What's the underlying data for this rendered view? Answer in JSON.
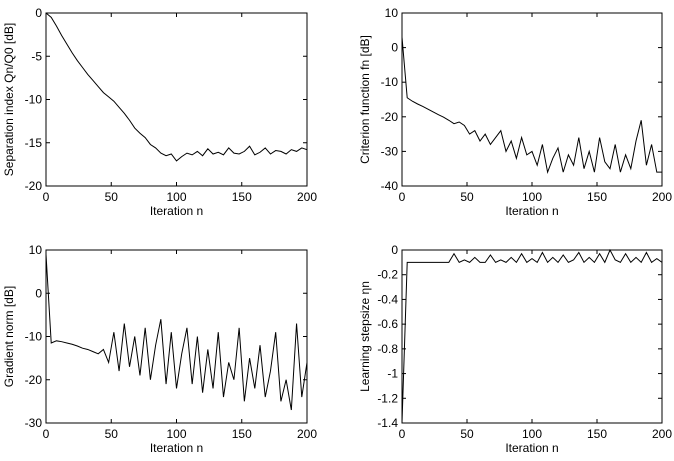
{
  "chart_data": [
    {
      "type": "line",
      "xlabel": "Iteration n",
      "ylabel": "Separation index Qn/Q0 [dB]",
      "color": "#000000",
      "xlim": [
        0,
        200
      ],
      "ylim": [
        -20,
        0
      ],
      "xticks": [
        0,
        50,
        100,
        150,
        200
      ],
      "yticks": [
        -20,
        -15,
        -10,
        -5,
        0
      ],
      "x": [
        0,
        4,
        8,
        12,
        16,
        20,
        24,
        28,
        32,
        36,
        40,
        44,
        48,
        52,
        56,
        60,
        64,
        68,
        72,
        76,
        80,
        84,
        88,
        92,
        96,
        100,
        104,
        108,
        112,
        116,
        120,
        124,
        128,
        132,
        136,
        140,
        144,
        148,
        152,
        156,
        160,
        164,
        168,
        172,
        176,
        180,
        184,
        188,
        192,
        196,
        200
      ],
      "values": [
        0,
        -0.5,
        -1.5,
        -2.6,
        -3.6,
        -4.6,
        -5.5,
        -6.3,
        -7.1,
        -7.8,
        -8.5,
        -9.2,
        -9.7,
        -10.2,
        -10.9,
        -11.6,
        -12.4,
        -13.3,
        -13.9,
        -14.4,
        -15.2,
        -15.6,
        -16.2,
        -16.5,
        -16.3,
        -17.1,
        -16.6,
        -16.2,
        -16.4,
        -16,
        -16.5,
        -15.7,
        -16.3,
        -16.1,
        -16.4,
        -15.6,
        -16.2,
        -16.3,
        -16,
        -15.4,
        -16.4,
        -16.1,
        -15.6,
        -16.3,
        -15.9,
        -16,
        -16.3,
        -15.8,
        -16,
        -15.6,
        -15.8
      ]
    },
    {
      "type": "line",
      "xlabel": "Iteration n",
      "ylabel": "Criterion function fn [dB]",
      "color": "#000000",
      "xlim": [
        0,
        200
      ],
      "ylim": [
        -40,
        10
      ],
      "xticks": [
        0,
        50,
        100,
        150,
        200
      ],
      "yticks": [
        -40,
        -30,
        -20,
        -10,
        0,
        10
      ],
      "x": [
        0,
        4,
        8,
        12,
        16,
        20,
        24,
        28,
        32,
        36,
        40,
        44,
        48,
        52,
        56,
        60,
        64,
        68,
        72,
        76,
        80,
        84,
        88,
        92,
        96,
        100,
        104,
        108,
        112,
        116,
        120,
        124,
        128,
        132,
        136,
        140,
        144,
        148,
        152,
        156,
        160,
        164,
        168,
        172,
        176,
        180,
        184,
        188,
        192,
        196,
        200
      ],
      "values": [
        3,
        -14.5,
        -15.5,
        -16.3,
        -17,
        -17.8,
        -18.6,
        -19.4,
        -20.1,
        -21,
        -22,
        -21.5,
        -22.5,
        -25,
        -24,
        -27,
        -25,
        -28,
        -26,
        -24,
        -30,
        -27,
        -32,
        -26,
        -31,
        -30,
        -34,
        -28,
        -36,
        -32,
        -29,
        -36,
        -31,
        -34,
        -26,
        -35,
        -30,
        -36,
        -26,
        -33,
        -35,
        -28,
        -36,
        -31,
        -35,
        -27,
        -21,
        -34,
        -28,
        -36,
        -36
      ]
    },
    {
      "type": "line",
      "xlabel": "Iteration n",
      "ylabel": "Gradient norm [dB]",
      "color": "#000000",
      "xlim": [
        0,
        200
      ],
      "ylim": [
        -30,
        10
      ],
      "xticks": [
        0,
        50,
        100,
        150,
        200
      ],
      "yticks": [
        -30,
        -20,
        -10,
        0,
        10
      ],
      "x": [
        0,
        4,
        8,
        12,
        16,
        20,
        24,
        28,
        32,
        36,
        40,
        44,
        48,
        52,
        56,
        60,
        64,
        68,
        72,
        76,
        80,
        84,
        88,
        92,
        96,
        100,
        104,
        108,
        112,
        116,
        120,
        124,
        128,
        132,
        136,
        140,
        144,
        148,
        152,
        156,
        160,
        164,
        168,
        172,
        176,
        180,
        184,
        188,
        192,
        196,
        200
      ],
      "values": [
        9,
        -11.5,
        -11,
        -11.2,
        -11.5,
        -11.8,
        -12.2,
        -12.7,
        -13,
        -13.5,
        -14,
        -13,
        -16,
        -9,
        -18,
        -7,
        -17,
        -10,
        -19,
        -8,
        -20,
        -12,
        -6,
        -21,
        -9,
        -22,
        -14,
        -8,
        -21,
        -10,
        -23,
        -13,
        -22,
        -9,
        -24,
        -16,
        -20,
        -8,
        -25,
        -15,
        -22,
        -12,
        -24,
        -18,
        -9,
        -25,
        -20,
        -27,
        -7,
        -24,
        -16
      ]
    },
    {
      "type": "line",
      "xlabel": "Iteration n",
      "ylabel": "Learning stepsize ηn",
      "color": "#000000",
      "xlim": [
        0,
        200
      ],
      "ylim": [
        -1.4,
        0
      ],
      "xticks": [
        0,
        50,
        100,
        150,
        200
      ],
      "yticks": [
        -1.4,
        -1.2,
        -1,
        -0.8,
        -0.6,
        -0.4,
        -0.2,
        0
      ],
      "x": [
        0,
        4,
        8,
        12,
        16,
        20,
        24,
        28,
        32,
        36,
        40,
        44,
        48,
        52,
        56,
        60,
        64,
        68,
        72,
        76,
        80,
        84,
        88,
        92,
        96,
        100,
        104,
        108,
        112,
        116,
        120,
        124,
        128,
        132,
        136,
        140,
        144,
        148,
        152,
        156,
        160,
        164,
        168,
        172,
        176,
        180,
        184,
        188,
        192,
        196,
        200
      ],
      "values": [
        -1.4,
        -0.1,
        -0.1,
        -0.1,
        -0.1,
        -0.1,
        -0.1,
        -0.1,
        -0.1,
        -0.1,
        -0.03,
        -0.1,
        -0.08,
        -0.1,
        -0.06,
        -0.1,
        -0.1,
        -0.04,
        -0.1,
        -0.08,
        -0.1,
        -0.06,
        -0.1,
        -0.03,
        -0.1,
        -0.07,
        -0.1,
        -0.02,
        -0.1,
        -0.06,
        -0.1,
        -0.04,
        -0.1,
        -0.08,
        -0.02,
        -0.1,
        -0.06,
        -0.1,
        -0.03,
        -0.1,
        0,
        -0.08,
        -0.1,
        -0.03,
        -0.1,
        -0.06,
        -0.1,
        -0.02,
        -0.1,
        -0.07,
        -0.1
      ]
    }
  ]
}
